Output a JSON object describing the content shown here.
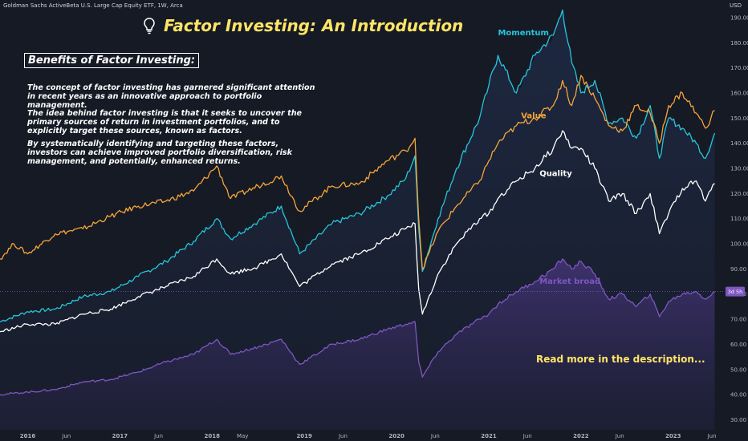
{
  "header": {
    "symbol_line": "Goldman Sachs ActiveBeta U.S. Large Cap Equity ETF, 1W, Arca",
    "currency": "USD"
  },
  "title": {
    "text": "Factor Investing: An Introduction",
    "icon": "lightbulb-icon"
  },
  "benefits": {
    "heading": "Benefits of Factor Investing:",
    "paragraphs": [
      "The concept of factor investing has garnered significant attention in recent years as an innovative approach to portfolio management.",
      "The idea behind factor investing is that it seeks to uncover the primary sources of return in investment portfolios, and to explicitly target these sources, known as factors.",
      "By systematically identifying and targeting these factors, investors can achieve improved portfolio diversification, risk management, and potentially, enhanced returns."
    ]
  },
  "cta": "Read more in the description...",
  "price_badge": {
    "text": "3d 5h",
    "value": 81,
    "color": "#7e57c2"
  },
  "chart_data": {
    "type": "line",
    "x_unit": "year",
    "xlim": [
      2015.7,
      2023.55
    ],
    "ylim": [
      26,
      197
    ],
    "y_ticks": [
      30,
      40,
      50,
      60,
      70,
      80,
      90,
      100,
      110,
      120,
      130,
      140,
      150,
      160,
      170,
      180,
      190
    ],
    "y_tick_labels": [
      "30.00",
      "40.00",
      "50.00",
      "60.00",
      "70.00",
      "80.00",
      "90.00",
      "100.00",
      "110.00",
      "120.00",
      "130.00",
      "140.00",
      "150.00",
      "160.00",
      "170.00",
      "180.00",
      "190.00"
    ],
    "x_ticks": [
      {
        "x": 2016.0,
        "label": "2016"
      },
      {
        "x": 2016.42,
        "label": "Jun"
      },
      {
        "x": 2017.0,
        "label": "2017"
      },
      {
        "x": 2017.42,
        "label": "Jun"
      },
      {
        "x": 2018.0,
        "label": "2018"
      },
      {
        "x": 2018.33,
        "label": "May"
      },
      {
        "x": 2019.0,
        "label": "2019"
      },
      {
        "x": 2019.42,
        "label": "Jun"
      },
      {
        "x": 2020.0,
        "label": "2020"
      },
      {
        "x": 2020.42,
        "label": "Jun"
      },
      {
        "x": 2021.0,
        "label": "2021"
      },
      {
        "x": 2021.42,
        "label": "Jun"
      },
      {
        "x": 2022.0,
        "label": "2022"
      },
      {
        "x": 2022.42,
        "label": "Jun"
      },
      {
        "x": 2023.0,
        "label": "2023"
      },
      {
        "x": 2023.42,
        "label": "Jun"
      }
    ],
    "grid": false,
    "series": [
      {
        "name": "Momentum",
        "color": "#26c6da",
        "label_at": [
          2021.1,
          183
        ],
        "points": [
          [
            2015.7,
            69
          ],
          [
            2016.0,
            73
          ],
          [
            2016.3,
            74
          ],
          [
            2016.6,
            79
          ],
          [
            2016.9,
            81
          ],
          [
            2017.2,
            87
          ],
          [
            2017.5,
            93
          ],
          [
            2017.8,
            101
          ],
          [
            2018.05,
            110
          ],
          [
            2018.2,
            102
          ],
          [
            2018.5,
            109
          ],
          [
            2018.75,
            115
          ],
          [
            2018.95,
            96
          ],
          [
            2019.3,
            108
          ],
          [
            2019.6,
            112
          ],
          [
            2019.9,
            119
          ],
          [
            2020.1,
            126
          ],
          [
            2020.2,
            135
          ],
          [
            2020.24,
            106
          ],
          [
            2020.28,
            89
          ],
          [
            2020.45,
            110
          ],
          [
            2020.65,
            130
          ],
          [
            2020.9,
            150
          ],
          [
            2021.0,
            163
          ],
          [
            2021.1,
            175
          ],
          [
            2021.3,
            160
          ],
          [
            2021.5,
            175
          ],
          [
            2021.7,
            183
          ],
          [
            2021.8,
            193
          ],
          [
            2021.9,
            172
          ],
          [
            2022.0,
            160
          ],
          [
            2022.15,
            165
          ],
          [
            2022.3,
            148
          ],
          [
            2022.45,
            150
          ],
          [
            2022.6,
            142
          ],
          [
            2022.75,
            155
          ],
          [
            2022.85,
            134
          ],
          [
            2022.95,
            150
          ],
          [
            2023.1,
            146
          ],
          [
            2023.25,
            140
          ],
          [
            2023.35,
            134
          ],
          [
            2023.45,
            144
          ]
        ]
      },
      {
        "name": "Value",
        "color": "#f7a53a",
        "label_at": [
          2021.35,
          150
        ],
        "points": [
          [
            2015.7,
            94
          ],
          [
            2015.85,
            100
          ],
          [
            2016.0,
            96
          ],
          [
            2016.3,
            104
          ],
          [
            2016.6,
            106
          ],
          [
            2016.9,
            111
          ],
          [
            2017.2,
            115
          ],
          [
            2017.5,
            117
          ],
          [
            2017.8,
            121
          ],
          [
            2018.05,
            131
          ],
          [
            2018.2,
            118
          ],
          [
            2018.5,
            123
          ],
          [
            2018.75,
            127
          ],
          [
            2018.95,
            113
          ],
          [
            2019.3,
            123
          ],
          [
            2019.6,
            124
          ],
          [
            2019.9,
            133
          ],
          [
            2020.1,
            137
          ],
          [
            2020.2,
            142
          ],
          [
            2020.24,
            110
          ],
          [
            2020.28,
            90
          ],
          [
            2020.45,
            105
          ],
          [
            2020.65,
            115
          ],
          [
            2020.9,
            125
          ],
          [
            2021.0,
            133
          ],
          [
            2021.1,
            140
          ],
          [
            2021.3,
            147
          ],
          [
            2021.5,
            150
          ],
          [
            2021.7,
            155
          ],
          [
            2021.8,
            165
          ],
          [
            2021.9,
            155
          ],
          [
            2022.0,
            167
          ],
          [
            2022.15,
            158
          ],
          [
            2022.3,
            147
          ],
          [
            2022.45,
            145
          ],
          [
            2022.6,
            155
          ],
          [
            2022.75,
            152
          ],
          [
            2022.85,
            140
          ],
          [
            2022.95,
            155
          ],
          [
            2023.1,
            160
          ],
          [
            2023.25,
            152
          ],
          [
            2023.35,
            146
          ],
          [
            2023.45,
            153
          ]
        ]
      },
      {
        "name": "Quality",
        "color": "#ffffff",
        "label_at": [
          2021.55,
          127
        ],
        "points": [
          [
            2015.7,
            65
          ],
          [
            2016.0,
            68
          ],
          [
            2016.3,
            68
          ],
          [
            2016.6,
            72
          ],
          [
            2016.9,
            74
          ],
          [
            2017.2,
            79
          ],
          [
            2017.5,
            83
          ],
          [
            2017.8,
            87
          ],
          [
            2018.05,
            94
          ],
          [
            2018.2,
            88
          ],
          [
            2018.5,
            91
          ],
          [
            2018.75,
            96
          ],
          [
            2018.95,
            83
          ],
          [
            2019.3,
            92
          ],
          [
            2019.6,
            96
          ],
          [
            2019.9,
            102
          ],
          [
            2020.1,
            106
          ],
          [
            2020.2,
            108
          ],
          [
            2020.24,
            82
          ],
          [
            2020.28,
            72
          ],
          [
            2020.45,
            88
          ],
          [
            2020.65,
            100
          ],
          [
            2020.9,
            110
          ],
          [
            2021.0,
            112
          ],
          [
            2021.1,
            118
          ],
          [
            2021.3,
            125
          ],
          [
            2021.5,
            130
          ],
          [
            2021.7,
            138
          ],
          [
            2021.8,
            145
          ],
          [
            2021.9,
            138
          ],
          [
            2022.0,
            138
          ],
          [
            2022.15,
            130
          ],
          [
            2022.3,
            117
          ],
          [
            2022.45,
            120
          ],
          [
            2022.6,
            112
          ],
          [
            2022.75,
            120
          ],
          [
            2022.85,
            104
          ],
          [
            2022.95,
            112
          ],
          [
            2023.1,
            122
          ],
          [
            2023.25,
            125
          ],
          [
            2023.35,
            117
          ],
          [
            2023.45,
            124
          ]
        ]
      },
      {
        "name": "Market broad",
        "color": "#7e57c2",
        "label_at": [
          2021.55,
          84
        ],
        "fill": true,
        "points": [
          [
            2015.7,
            40
          ],
          [
            2016.0,
            41
          ],
          [
            2016.3,
            42
          ],
          [
            2016.6,
            45
          ],
          [
            2016.9,
            46
          ],
          [
            2017.2,
            49
          ],
          [
            2017.5,
            53
          ],
          [
            2017.8,
            56
          ],
          [
            2018.05,
            62
          ],
          [
            2018.2,
            56
          ],
          [
            2018.5,
            59
          ],
          [
            2018.75,
            62
          ],
          [
            2018.95,
            52
          ],
          [
            2019.3,
            60
          ],
          [
            2019.6,
            62
          ],
          [
            2019.9,
            66
          ],
          [
            2020.1,
            68
          ],
          [
            2020.2,
            69
          ],
          [
            2020.24,
            53
          ],
          [
            2020.28,
            47
          ],
          [
            2020.45,
            57
          ],
          [
            2020.65,
            64
          ],
          [
            2020.9,
            70
          ],
          [
            2021.0,
            72
          ],
          [
            2021.1,
            76
          ],
          [
            2021.3,
            81
          ],
          [
            2021.5,
            85
          ],
          [
            2021.7,
            90
          ],
          [
            2021.8,
            94
          ],
          [
            2021.9,
            90
          ],
          [
            2022.0,
            93
          ],
          [
            2022.15,
            88
          ],
          [
            2022.3,
            78
          ],
          [
            2022.45,
            80
          ],
          [
            2022.6,
            75
          ],
          [
            2022.75,
            80
          ],
          [
            2022.85,
            71
          ],
          [
            2022.95,
            77
          ],
          [
            2023.1,
            80
          ],
          [
            2023.25,
            81
          ],
          [
            2023.35,
            78
          ],
          [
            2023.45,
            81
          ]
        ]
      }
    ]
  }
}
